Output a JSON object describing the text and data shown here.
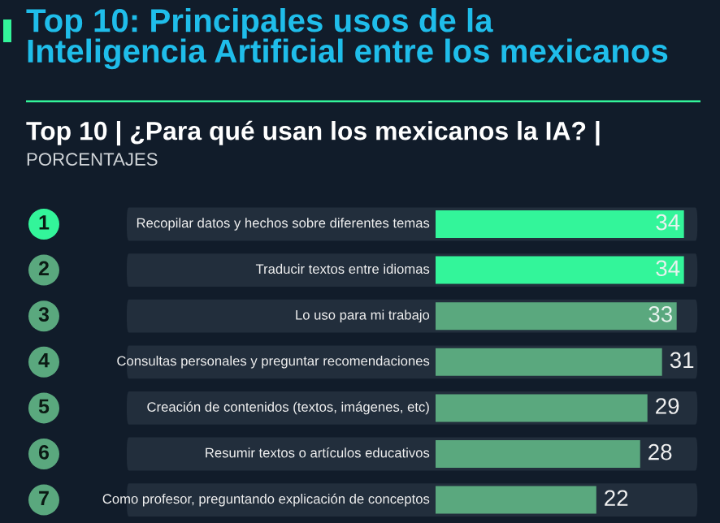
{
  "chart_data": {
    "type": "bar",
    "orientation": "horizontal",
    "title": "Top 10: Principales usos de la\nInteligencia Artificial entre los mexicanos",
    "subtitle": "Top 10 | ¿Para qué usan los mexicanos la IA? |",
    "annotations": [
      "PORCENTAJES",
      "1",
      "2",
      "3",
      "4",
      "5",
      "6",
      "7"
    ],
    "categories": [
      "Recopilar datos y hechos sobre diferentes temas",
      "Traducir textos entre idiomas",
      "Lo uso para mi trabajo",
      "Consultas personales y preguntar recomendaciones",
      "Creación de contenidos (textos, imágenes, etc)",
      "Resumir textos o artículos educativos",
      "Como profesor, preguntando explicación de conceptos"
    ],
    "values": [
      34,
      34,
      33,
      31,
      29,
      28,
      22
    ],
    "colors": [
      "#33f59a",
      "#33f59a",
      "#5aa87e",
      "#5aa87e",
      "#5aa87e",
      "#5aa87e",
      "#5aa87e"
    ],
    "data_labels": true
  }
}
